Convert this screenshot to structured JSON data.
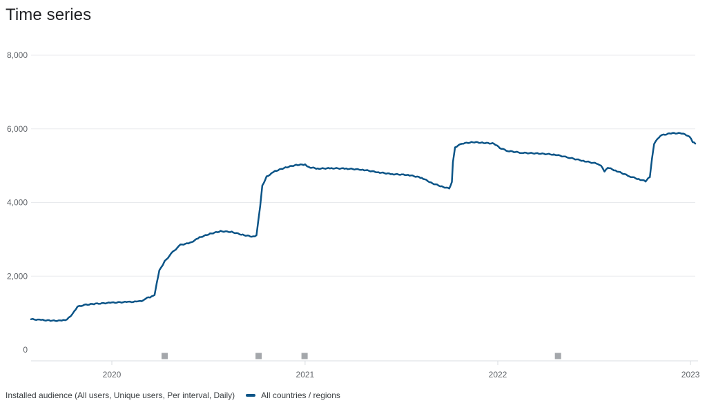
{
  "page": {
    "title": "Time series"
  },
  "chart_data": {
    "type": "line",
    "ylim": [
      0,
      8000
    ],
    "yticks": [
      {
        "value": 0,
        "label": "0"
      },
      {
        "value": 2000,
        "label": "2,000"
      },
      {
        "value": 4000,
        "label": "4,000"
      },
      {
        "value": 6000,
        "label": "6,000"
      },
      {
        "value": 8000,
        "label": "8,000"
      }
    ],
    "xlim": [
      "2019-08-01",
      "2023-01-10"
    ],
    "xticks": [
      {
        "date": "2020-01-01",
        "label": "2020"
      },
      {
        "date": "2021-01-01",
        "label": "2021"
      },
      {
        "date": "2022-01-01",
        "label": "2022"
      },
      {
        "date": "2023-01-01",
        "label": "2023"
      }
    ],
    "grid": true,
    "legend": {
      "position": "bottom-left",
      "caption": "Installed audience (All users, Unique users, Per interval, Daily)",
      "series_name": "All countries / regions"
    },
    "series": [
      {
        "name": "All countries / regions",
        "color": "#0b5487",
        "points": [
          [
            "2019-08-01",
            830
          ],
          [
            "2019-08-20",
            810
          ],
          [
            "2019-09-10",
            790
          ],
          [
            "2019-09-28",
            790
          ],
          [
            "2019-10-08",
            820
          ],
          [
            "2019-10-18",
            960
          ],
          [
            "2019-10-28",
            1170
          ],
          [
            "2019-11-10",
            1220
          ],
          [
            "2019-12-01",
            1250
          ],
          [
            "2020-01-01",
            1280
          ],
          [
            "2020-02-01",
            1300
          ],
          [
            "2020-02-20",
            1310
          ],
          [
            "2020-03-01",
            1340
          ],
          [
            "2020-03-08",
            1410
          ],
          [
            "2020-03-16",
            1440
          ],
          [
            "2020-03-22",
            1480
          ],
          [
            "2020-03-26",
            1800
          ],
          [
            "2020-03-31",
            2150
          ],
          [
            "2020-04-10",
            2400
          ],
          [
            "2020-04-25",
            2650
          ],
          [
            "2020-05-10",
            2850
          ],
          [
            "2020-05-28",
            2900
          ],
          [
            "2020-06-15",
            3050
          ],
          [
            "2020-07-05",
            3150
          ],
          [
            "2020-07-25",
            3220
          ],
          [
            "2020-08-15",
            3200
          ],
          [
            "2020-09-05",
            3120
          ],
          [
            "2020-09-25",
            3070
          ],
          [
            "2020-10-01",
            3100
          ],
          [
            "2020-10-04",
            3450
          ],
          [
            "2020-10-08",
            3900
          ],
          [
            "2020-10-12",
            4450
          ],
          [
            "2020-10-20",
            4700
          ],
          [
            "2020-11-05",
            4850
          ],
          [
            "2020-11-25",
            4950
          ],
          [
            "2020-12-15",
            5020
          ],
          [
            "2021-01-01",
            5030
          ],
          [
            "2021-01-08",
            4960
          ],
          [
            "2021-01-25",
            4920
          ],
          [
            "2021-02-20",
            4930
          ],
          [
            "2021-03-20",
            4920
          ],
          [
            "2021-04-20",
            4890
          ],
          [
            "2021-05-20",
            4820
          ],
          [
            "2021-06-15",
            4770
          ],
          [
            "2021-07-15",
            4750
          ],
          [
            "2021-08-10",
            4670
          ],
          [
            "2021-08-30",
            4520
          ],
          [
            "2021-09-20",
            4420
          ],
          [
            "2021-10-01",
            4380
          ],
          [
            "2021-10-06",
            4560
          ],
          [
            "2021-10-08",
            5100
          ],
          [
            "2021-10-12",
            5500
          ],
          [
            "2021-10-25",
            5600
          ],
          [
            "2021-11-15",
            5640
          ],
          [
            "2021-12-05",
            5620
          ],
          [
            "2021-12-25",
            5600
          ],
          [
            "2022-01-05",
            5480
          ],
          [
            "2022-01-20",
            5400
          ],
          [
            "2022-02-15",
            5350
          ],
          [
            "2022-03-20",
            5330
          ],
          [
            "2022-04-20",
            5300
          ],
          [
            "2022-05-15",
            5220
          ],
          [
            "2022-06-15",
            5120
          ],
          [
            "2022-07-10",
            5050
          ],
          [
            "2022-07-18",
            4960
          ],
          [
            "2022-07-22",
            4850
          ],
          [
            "2022-07-28",
            4950
          ],
          [
            "2022-08-15",
            4850
          ],
          [
            "2022-09-10",
            4700
          ],
          [
            "2022-09-28",
            4620
          ],
          [
            "2022-10-08",
            4580
          ],
          [
            "2022-10-16",
            4700
          ],
          [
            "2022-10-20",
            5200
          ],
          [
            "2022-10-24",
            5600
          ],
          [
            "2022-11-05",
            5820
          ],
          [
            "2022-11-25",
            5880
          ],
          [
            "2022-12-15",
            5880
          ],
          [
            "2022-12-30",
            5800
          ],
          [
            "2023-01-05",
            5650
          ],
          [
            "2023-01-10",
            5600
          ]
        ]
      }
    ],
    "annotation_markers": [
      "2020-04-10",
      "2020-10-05",
      "2020-12-31",
      "2022-04-25"
    ]
  }
}
